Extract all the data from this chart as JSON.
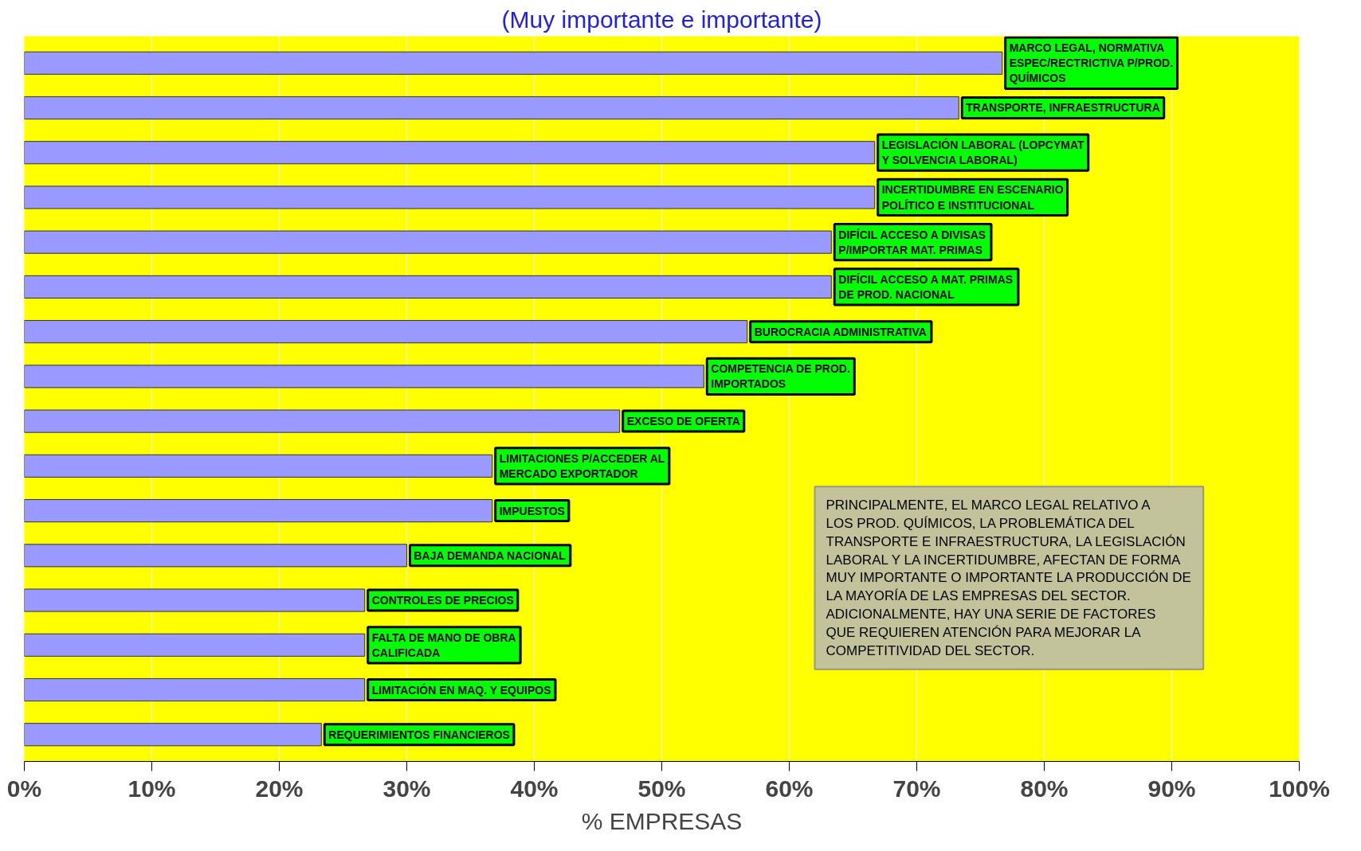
{
  "chart_data": {
    "type": "bar",
    "orientation": "horizontal",
    "title": "(Muy importante e importante)",
    "xlabel": "% EMPRESAS",
    "categories": [
      "MARCO LEGAL, NORMATIVA ESPEC/RECTRICTIVA P/PROD. QUÍMICOS",
      "TRANSPORTE, INFRAESTRUCTURA",
      "LEGISLACIÓN LABORAL (LOPCYMAT Y SOLVENCIA LABORAL)",
      "INCERTIDUMBRE EN ESCENARIO POLÍTICO E INSTITUCIONAL",
      "DIFÍCIL ACCESO A DIVISAS P/IMPORTAR MAT. PRIMAS",
      "DIFÍCIL ACCESO A MAT. PRIMAS DE PROD. NACIONAL",
      "BUROCRACIA ADMINISTRATIVA",
      "COMPETENCIA DE PROD. IMPORTADOS",
      "EXCESO DE OFERTA",
      "LIMITACIONES P/ACCEDER AL MERCADO EXPORTADOR",
      "IMPUESTOS",
      "BAJA DEMANDA NACIONAL",
      "CONTROLES DE PRECIOS",
      "FALTA DE MANO DE OBRA CALIFICADA",
      "LIMITACIÓN EN MAQ. Y EQUIPOS",
      "REQUERIMIENTOS FINANCIEROS"
    ],
    "values": [
      76.7,
      73.3,
      66.7,
      66.7,
      63.3,
      63.3,
      56.7,
      53.3,
      46.7,
      36.7,
      36.7,
      30.0,
      26.7,
      26.7,
      26.7,
      23.3
    ],
    "color": "#9999ff",
    "xlim": [
      0,
      100
    ],
    "xticks": [
      {
        "value": 0,
        "label": "0%"
      },
      {
        "value": 10,
        "label": "10%"
      },
      {
        "value": 20,
        "label": "20%"
      },
      {
        "value": 30,
        "label": "30%"
      },
      {
        "value": 40,
        "label": "40%"
      },
      {
        "value": 50,
        "label": "50%"
      },
      {
        "value": 60,
        "label": "60%"
      },
      {
        "value": 70,
        "label": "70%"
      },
      {
        "value": 80,
        "label": "80%"
      },
      {
        "value": 90,
        "label": "90%"
      },
      {
        "value": 100,
        "label": "100%"
      }
    ],
    "grid": "x",
    "tick_labels": "x",
    "annotations": [
      "PRINCIPALMENTE, EL MARCO LEGAL RELATIVO A LOS PROD. QUÍMICOS, LA PROBLEMÁTICA DEL TRANSPORTE E INFRAESTRUCTURA, LA LEGISLACIÓN LABORAL Y LA INCERTIDUMBRE, AFECTAN DE FORMA MUY IMPORTANTE O IMPORTANTE LA PRODUCCIÓN DE LA MAYORÍA DE LAS EMPRESAS DEL SECTOR. ADICIONALMENTE, HAY UNA SERIE DE FACTORES QUE REQUIEREN ATENCIÓN PARA MEJORAR LA COMPETITIVIDAD DEL SECTOR."
    ]
  }
}
